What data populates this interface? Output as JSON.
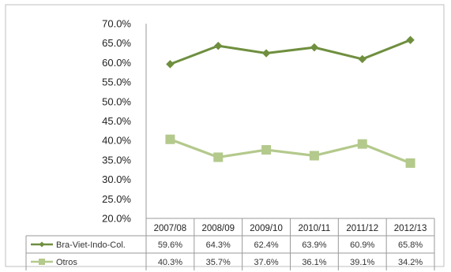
{
  "chart_data": {
    "type": "line",
    "categories": [
      "2007/08",
      "2008/09",
      "2009/10",
      "2010/11",
      "2011/12",
      "2012/13"
    ],
    "series": [
      {
        "name": "Bra-Viet-Indo-Col.",
        "values": [
          59.6,
          64.3,
          62.4,
          63.9,
          60.9,
          65.8
        ],
        "labels": [
          "59.6%",
          "64.3%",
          "62.4%",
          "63.9%",
          "60.9%",
          "65.8%"
        ],
        "color": "#6f8f3f",
        "marker": "diamond"
      },
      {
        "name": "Otros",
        "values": [
          40.3,
          35.7,
          37.6,
          36.1,
          39.1,
          34.2
        ],
        "labels": [
          "40.3%",
          "35.7%",
          "37.6%",
          "36.1%",
          "39.1%",
          "34.2%"
        ],
        "color": "#b4c98c",
        "marker": "square"
      }
    ],
    "ylim": [
      20,
      70
    ],
    "yticks": [
      "20.0%",
      "25.0%",
      "30.0%",
      "35.0%",
      "40.0%",
      "45.0%",
      "50.0%",
      "55.0%",
      "60.0%",
      "65.0%",
      "70.0%"
    ],
    "grid": false,
    "legend": "data-table-left"
  }
}
